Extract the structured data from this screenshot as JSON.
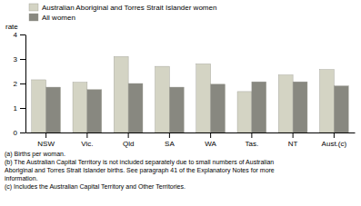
{
  "chart_data": {
    "type": "bar",
    "y_label": "rate",
    "categories": [
      "NSW",
      "Vic.",
      "Qld",
      "SA",
      "WA",
      "Tas.",
      "NT",
      "Aust.(c)"
    ],
    "series": [
      {
        "name": "Australian Aboriginal and Torres Strait Islander women",
        "color": "#d4d4c4",
        "values": [
          2.15,
          2.05,
          3.1,
          2.7,
          2.8,
          1.67,
          2.35,
          2.57
        ]
      },
      {
        "name": "All women",
        "color": "#888880",
        "values": [
          1.85,
          1.75,
          2.0,
          1.85,
          1.97,
          2.07,
          2.07,
          1.9
        ]
      }
    ],
    "ylim": [
      0,
      4
    ],
    "yticks": [
      0,
      1,
      2,
      3,
      4
    ],
    "legend": "upper left",
    "annotations": [
      "(a) Births per woman.",
      "(b) The Australian Capital Territory is not included separately due to small numbers of Australian\nAboriginal and Torres Strait Islander births.  See paragraph 41 of the Explanatory Notes for more\ninformation.",
      "(c) Includes the Australian Capital Territory and Other Territories."
    ]
  }
}
